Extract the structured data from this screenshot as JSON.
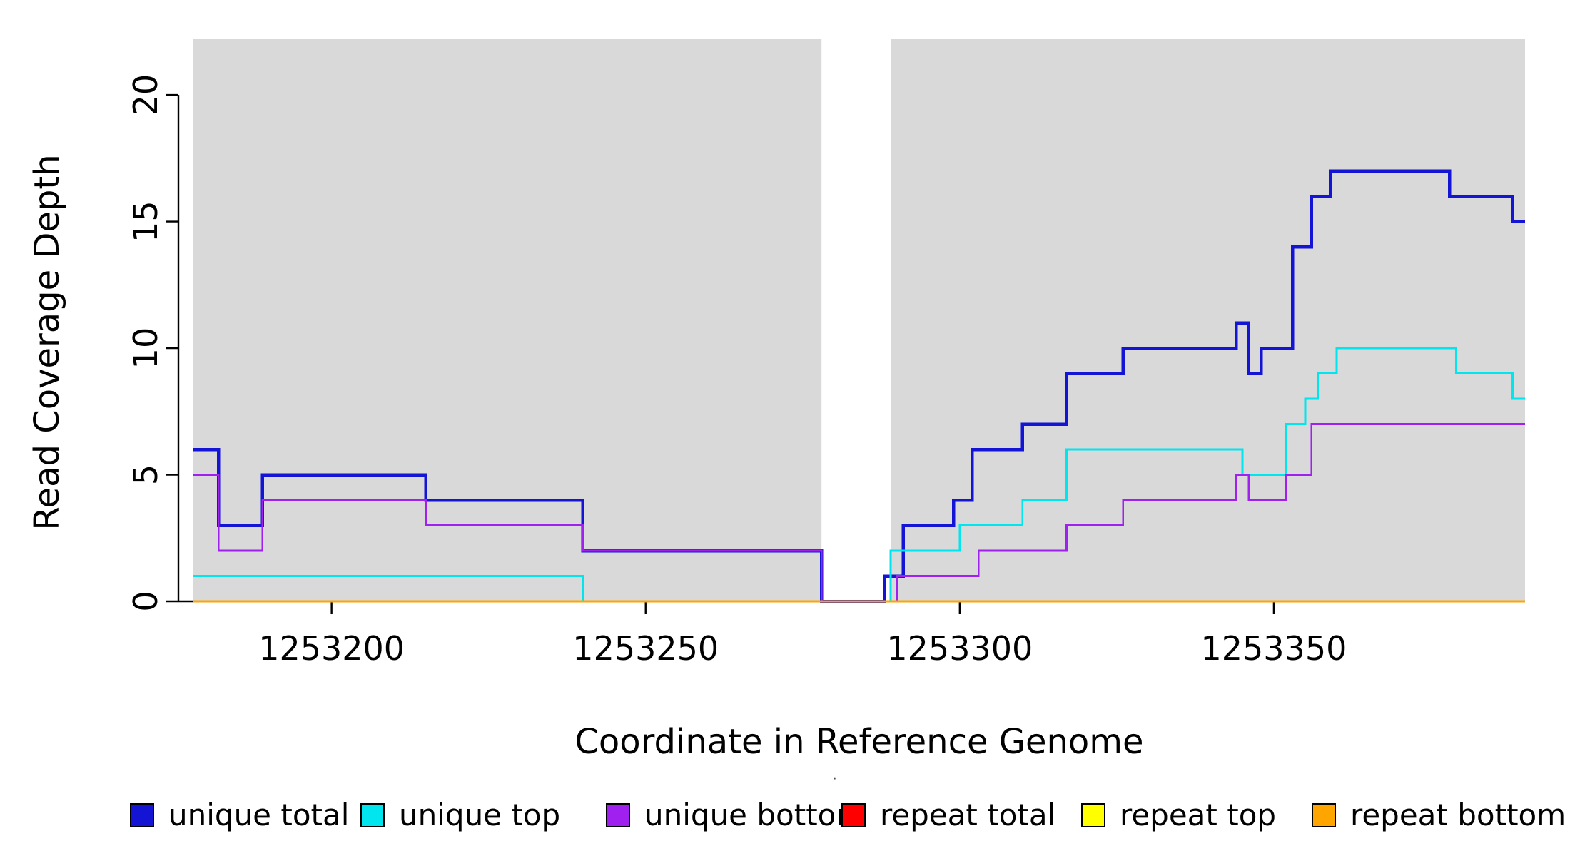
{
  "chart_data": {
    "type": "line",
    "subtype": "step-coverage",
    "title": "",
    "xlabel": "Coordinate in Reference Genome",
    "ylabel": "Read Coverage Depth",
    "xlim": [
      1253178,
      1253390
    ],
    "ylim": [
      0,
      22.2
    ],
    "xticks": [
      1253200,
      1253250,
      1253300,
      1253350
    ],
    "yticks": [
      0,
      5,
      10,
      15,
      20
    ],
    "grid": false,
    "background": "#ffffff",
    "shade_color": "#d9d9d9",
    "shaded_regions": [
      [
        1253178,
        1253278
      ],
      [
        1253289,
        1253390
      ]
    ],
    "series": [
      {
        "name": "unique total",
        "color": "#1414d4",
        "width": 4.5,
        "steps": [
          [
            1253178,
            6
          ],
          [
            1253182,
            3
          ],
          [
            1253189,
            5
          ],
          [
            1253215,
            4
          ],
          [
            1253240,
            2
          ],
          [
            1253278,
            0
          ],
          [
            1253288,
            1
          ],
          [
            1253291,
            3
          ],
          [
            1253299,
            4
          ],
          [
            1253302,
            6
          ],
          [
            1253310,
            7
          ],
          [
            1253317,
            9
          ],
          [
            1253326,
            10
          ],
          [
            1253344,
            11
          ],
          [
            1253346,
            9
          ],
          [
            1253348,
            10
          ],
          [
            1253353,
            14
          ],
          [
            1253356,
            16
          ],
          [
            1253359,
            17
          ],
          [
            1253378,
            16
          ],
          [
            1253388,
            15
          ]
        ]
      },
      {
        "name": "unique top",
        "color": "#00e5ee",
        "width": 2.8,
        "steps": [
          [
            1253178,
            1
          ],
          [
            1253240,
            0
          ],
          [
            1253289,
            2
          ],
          [
            1253300,
            3
          ],
          [
            1253310,
            4
          ],
          [
            1253317,
            6
          ],
          [
            1253345,
            5
          ],
          [
            1253352,
            7
          ],
          [
            1253355,
            8
          ],
          [
            1253357,
            9
          ],
          [
            1253360,
            10
          ],
          [
            1253379,
            9
          ],
          [
            1253388,
            8
          ]
        ]
      },
      {
        "name": "unique bottom",
        "color": "#a020f0",
        "width": 2.8,
        "steps": [
          [
            1253178,
            5
          ],
          [
            1253182,
            2
          ],
          [
            1253189,
            4
          ],
          [
            1253215,
            3
          ],
          [
            1253240,
            2
          ],
          [
            1253278,
            0
          ],
          [
            1253290,
            1
          ],
          [
            1253303,
            2
          ],
          [
            1253317,
            3
          ],
          [
            1253326,
            4
          ],
          [
            1253344,
            5
          ],
          [
            1253346,
            4
          ],
          [
            1253352,
            5
          ],
          [
            1253356,
            7
          ]
        ]
      },
      {
        "name": "repeat total",
        "color": "#ff0000",
        "width": 2.8,
        "steps": [
          [
            1253178,
            0
          ]
        ]
      },
      {
        "name": "repeat top",
        "color": "#ffff00",
        "width": 2.8,
        "steps": [
          [
            1253178,
            0
          ]
        ]
      },
      {
        "name": "repeat bottom",
        "color": "#ffa500",
        "width": 2.8,
        "steps": [
          [
            1253178,
            0
          ]
        ]
      }
    ],
    "legend": {
      "position": "bottom",
      "title_mark": "·",
      "items": [
        {
          "label": "unique total",
          "color": "#1414d4"
        },
        {
          "label": "unique top",
          "color": "#00e5ee"
        },
        {
          "label": "unique bottom",
          "color": "#a020f0"
        },
        {
          "label": "repeat total",
          "color": "#ff0000"
        },
        {
          "label": "repeat top",
          "color": "#ffff00"
        },
        {
          "label": "repeat bottom",
          "color": "#ffa500"
        }
      ]
    }
  }
}
